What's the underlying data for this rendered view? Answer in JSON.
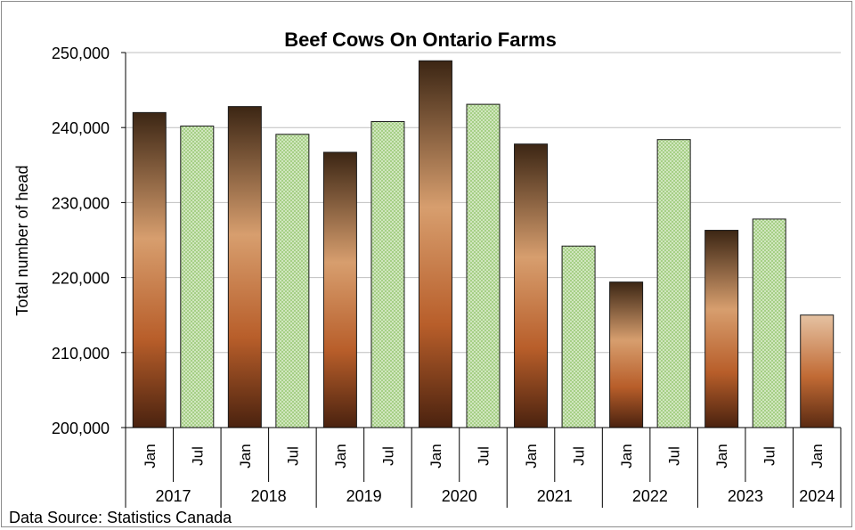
{
  "chart_data": {
    "type": "bar",
    "title": "Beef Cows On Ontario Farms",
    "ylabel": "Total number of head",
    "xlabel": "",
    "ylim": [
      200000,
      250000
    ],
    "yticks": [
      "200,000",
      "210,000",
      "220,000",
      "230,000",
      "240,000",
      "250,000"
    ],
    "ytick_values": [
      200000,
      210000,
      220000,
      230000,
      240000,
      250000
    ],
    "grid": true,
    "categories": [
      "Jan",
      "Jul",
      "Jan",
      "Jul",
      "Jan",
      "Jul",
      "Jan",
      "Jul",
      "Jan",
      "Jul",
      "Jan",
      "Jul",
      "Jan",
      "Jul",
      "Jan"
    ],
    "groups": [
      {
        "label": "2017",
        "count": 2
      },
      {
        "label": "2018",
        "count": 2
      },
      {
        "label": "2019",
        "count": 2
      },
      {
        "label": "2020",
        "count": 2
      },
      {
        "label": "2021",
        "count": 2
      },
      {
        "label": "2022",
        "count": 2
      },
      {
        "label": "2023",
        "count": 2
      },
      {
        "label": "2024",
        "count": 1
      }
    ],
    "values": [
      242000,
      240200,
      242800,
      239100,
      236700,
      240800,
      248900,
      243100,
      237800,
      224200,
      219400,
      238400,
      226300,
      227800,
      215000
    ],
    "colors": {
      "jan": "#b5652e",
      "jul": "#a8d08d",
      "axis": "#000000",
      "grid": "#bfbfbf"
    }
  },
  "footer": {
    "source": "Data Source: Statistics Canada"
  }
}
